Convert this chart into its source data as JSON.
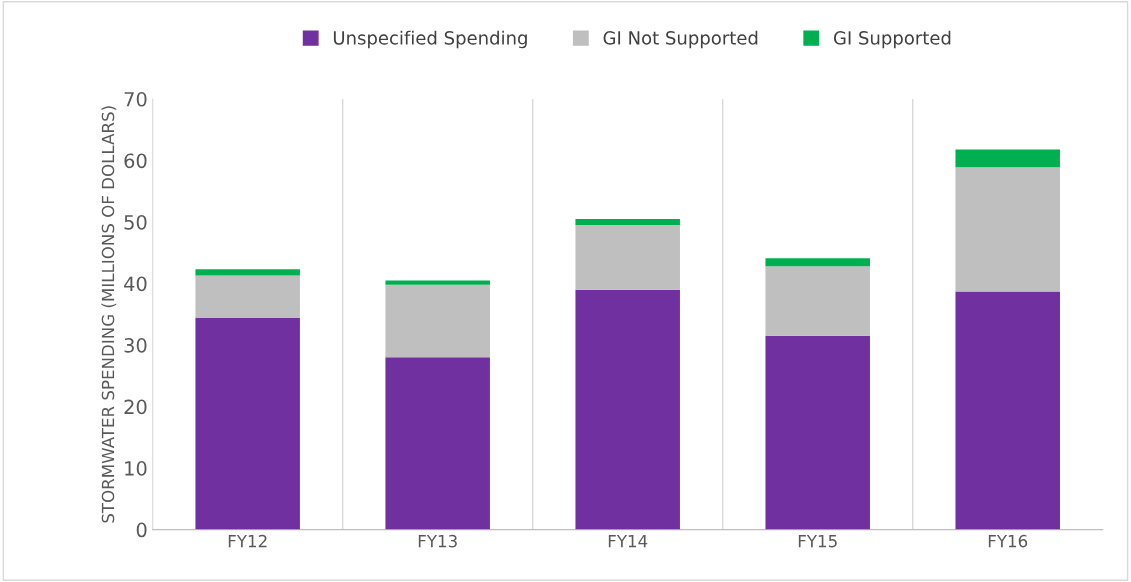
{
  "chart_data": {
    "type": "bar",
    "stacked": true,
    "categories": [
      "FY12",
      "FY13",
      "FY14",
      "FY15",
      "FY16"
    ],
    "series": [
      {
        "name": "Unspecified Spending",
        "color": "#7030a0",
        "values": [
          34.4,
          28.0,
          39.0,
          31.5,
          38.7
        ]
      },
      {
        "name": "GI Not Supported",
        "color": "#bfbfbf",
        "values": [
          6.9,
          11.8,
          10.5,
          11.3,
          20.2
        ]
      },
      {
        "name": "GI Supported",
        "color": "#00b050",
        "values": [
          1.0,
          0.7,
          1.0,
          1.3,
          2.9
        ]
      }
    ],
    "ylabel": "STORMWATER SPENDING (MILLIONS OF DOLLARS)",
    "ylim": [
      0,
      70
    ],
    "yticks": [
      0,
      10,
      20,
      30,
      40,
      50,
      60,
      70
    ],
    "grid": "x",
    "legend": "top"
  }
}
